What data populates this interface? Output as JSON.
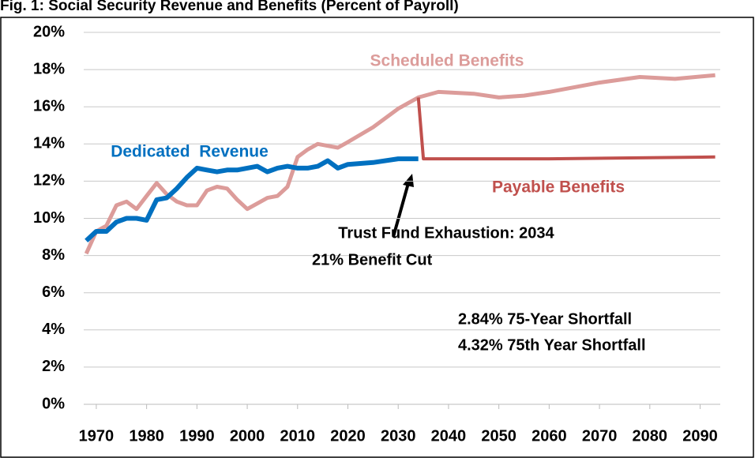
{
  "chart_data": {
    "type": "line",
    "title": "Fig. 1: Social Security Revenue and Benefits (Percent of Payroll)",
    "xlim": [
      1967.5,
      2094
    ],
    "xticks": [
      1970,
      1980,
      1990,
      2000,
      2010,
      2020,
      2030,
      2040,
      2050,
      2060,
      2070,
      2080,
      2090
    ],
    "ylim": [
      0,
      20
    ],
    "yticks": [
      {
        "value": 0,
        "label": "0%"
      },
      {
        "value": 2,
        "label": "2%"
      },
      {
        "value": 4,
        "label": "4%"
      },
      {
        "value": 6,
        "label": "6%"
      },
      {
        "value": 8,
        "label": "8%"
      },
      {
        "value": 10,
        "label": "10%"
      },
      {
        "value": 12,
        "label": "12%"
      },
      {
        "value": 14,
        "label": "14%"
      },
      {
        "value": 16,
        "label": "16%"
      },
      {
        "value": 18,
        "label": "18%"
      },
      {
        "value": 20,
        "label": "20%"
      }
    ],
    "grid": true,
    "series": [
      {
        "name": "Scheduled Benefits",
        "color": "#dc9c9a",
        "x": [
          1968,
          1970,
          1972,
          1974,
          1976,
          1978,
          1980,
          1982,
          1984,
          1986,
          1988,
          1990,
          1992,
          1994,
          1996,
          1998,
          2000,
          2002,
          2004,
          2006,
          2008,
          2010,
          2012,
          2014,
          2016,
          2018,
          2020,
          2025,
          2030,
          2034,
          2038,
          2045,
          2050,
          2055,
          2060,
          2070,
          2078,
          2085,
          2093
        ],
        "values": [
          8.1,
          9.3,
          9.6,
          10.7,
          10.9,
          10.5,
          11.2,
          11.9,
          11.3,
          10.9,
          10.7,
          10.7,
          11.5,
          11.7,
          11.6,
          11.0,
          10.5,
          10.8,
          11.1,
          11.2,
          11.7,
          13.3,
          13.7,
          14.0,
          13.9,
          13.8,
          14.1,
          14.9,
          15.9,
          16.5,
          16.8,
          16.7,
          16.5,
          16.6,
          16.8,
          17.3,
          17.6,
          17.5,
          17.7
        ]
      },
      {
        "name": "Dedicated  Revenue",
        "color": "#0070c0",
        "x": [
          1968,
          1970,
          1972,
          1974,
          1976,
          1978,
          1980,
          1982,
          1984,
          1986,
          1988,
          1990,
          1992,
          1994,
          1996,
          1998,
          2000,
          2002,
          2004,
          2006,
          2008,
          2010,
          2012,
          2014,
          2016,
          2018,
          2020,
          2025,
          2030,
          2034
        ],
        "values": [
          8.8,
          9.3,
          9.3,
          9.8,
          10.0,
          10.0,
          9.9,
          11.0,
          11.1,
          11.6,
          12.2,
          12.7,
          12.6,
          12.5,
          12.6,
          12.6,
          12.7,
          12.8,
          12.5,
          12.7,
          12.8,
          12.7,
          12.7,
          12.8,
          13.1,
          12.7,
          12.9,
          13.0,
          13.2,
          13.2
        ]
      },
      {
        "name": "Payable Benefits",
        "color": "#c0504d",
        "x": [
          2034,
          2035,
          2060,
          2093
        ],
        "values": [
          16.5,
          13.2,
          13.2,
          13.3
        ]
      }
    ],
    "annotations": [
      "Trust Fund Exhaustion: 2034",
      "21% Benefit Cut",
      "2.84% 75-Year Shortfall",
      "4.32% 75th Year Shortfall"
    ]
  }
}
